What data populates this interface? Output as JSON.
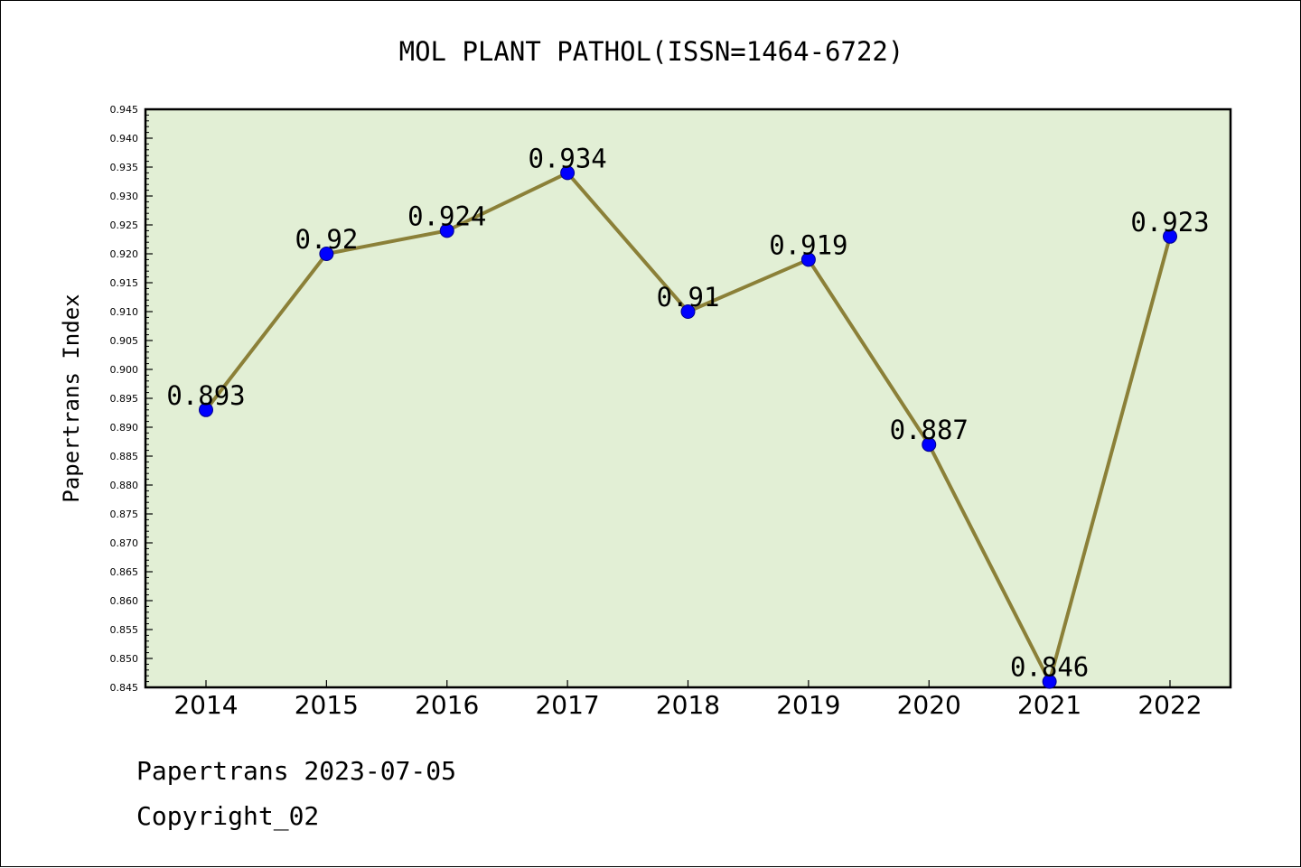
{
  "chart_data": {
    "type": "line",
    "title": "MOL PLANT PATHOL(ISSN=1464-6722)",
    "xlabel": "",
    "ylabel": "Papertrans Index",
    "categories": [
      "2014",
      "2015",
      "2016",
      "2017",
      "2018",
      "2019",
      "2020",
      "2021",
      "2022"
    ],
    "series": [
      {
        "values": [
          0.893,
          0.92,
          0.924,
          0.934,
          0.91,
          0.919,
          0.887,
          0.846,
          0.923
        ],
        "labels": [
          "0.893",
          "0.92",
          "0.924",
          "0.934",
          "0.91",
          "0.919",
          "0.887",
          "0.846",
          "0.923"
        ]
      }
    ],
    "ylim": [
      0.845,
      0.945
    ],
    "yticks": [
      "0.845",
      "0.850",
      "0.855",
      "0.860",
      "0.865",
      "0.870",
      "0.875",
      "0.880",
      "0.885",
      "0.890",
      "0.895",
      "0.900",
      "0.905",
      "0.910",
      "0.915",
      "0.920",
      "0.925",
      "0.930",
      "0.935",
      "0.940",
      "0.945"
    ],
    "grid": false,
    "legend": "none",
    "colors": {
      "plot_background": "#e2efd5",
      "line": "#8b8038",
      "marker": "#0000ff"
    }
  },
  "footer": {
    "source": "Papertrans 2023-07-05",
    "copyright": "Copyright_02"
  }
}
